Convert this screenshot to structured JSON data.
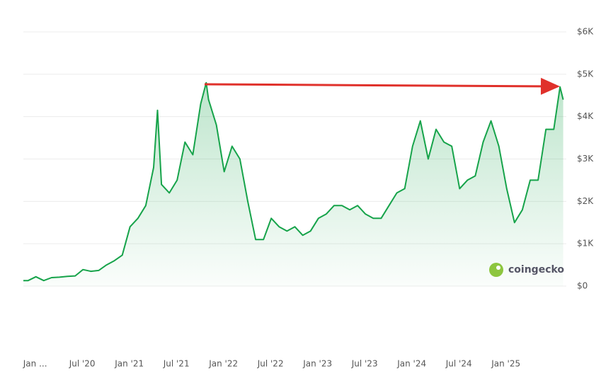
{
  "chart_data": {
    "type": "line",
    "x": [
      -0.6,
      0,
      1,
      2,
      3,
      4,
      5,
      6,
      7,
      8,
      9,
      10,
      11,
      12,
      13,
      14,
      15,
      16,
      16.5,
      17,
      18,
      19,
      20,
      21,
      22,
      22.7,
      23,
      24,
      25,
      26,
      27,
      28,
      29,
      30,
      31,
      32,
      33,
      34,
      35,
      36,
      37,
      38,
      39,
      40,
      41,
      42,
      43,
      44,
      45,
      46,
      47,
      48,
      49,
      50,
      51,
      52,
      53,
      54,
      55,
      56,
      57,
      58,
      59,
      60,
      61,
      62,
      63,
      64,
      65,
      66,
      67,
      67.8,
      68.2
    ],
    "series": [
      {
        "color": "#16a34a",
        "values": [
          130,
          130,
          220,
          130,
          200,
          210,
          230,
          240,
          390,
          350,
          370,
          500,
          600,
          730,
          1400,
          1600,
          1900,
          2800,
          4150,
          2400,
          2200,
          2500,
          3400,
          3100,
          4300,
          4800,
          4400,
          3800,
          2700,
          3300,
          3000,
          2000,
          1100,
          1100,
          1600,
          1400,
          1300,
          1400,
          1200,
          1300,
          1600,
          1700,
          1900,
          1900,
          1800,
          1900,
          1700,
          1600,
          1600,
          1900,
          2200,
          2300,
          3300,
          3900,
          3000,
          3700,
          3400,
          3300,
          2300,
          2500,
          2600,
          3400,
          3900,
          3300,
          2300,
          1500,
          1800,
          2500,
          2500,
          3700,
          3700,
          4700,
          4400
        ]
      }
    ],
    "xlim": [
      -0.6,
      68.6
    ],
    "xticks": [
      {
        "value": 0,
        "label": "Jan ..."
      },
      {
        "value": 6,
        "label": "Jul '20"
      },
      {
        "value": 12,
        "label": "Jan '21"
      },
      {
        "value": 18,
        "label": "Jul '21"
      },
      {
        "value": 24,
        "label": "Jan '22"
      },
      {
        "value": 30,
        "label": "Jul '22"
      },
      {
        "value": 36,
        "label": "Jan '23"
      },
      {
        "value": 42,
        "label": "Jul '23"
      },
      {
        "value": 48,
        "label": "Jan '24"
      },
      {
        "value": 54,
        "label": "Jul '24"
      },
      {
        "value": 60,
        "label": "Jan '25"
      }
    ],
    "ylim": [
      0,
      6000
    ],
    "yticks": [
      {
        "value": 0,
        "label": "$0"
      },
      {
        "value": 1000,
        "label": "$1K"
      },
      {
        "value": 2000,
        "label": "$2K"
      },
      {
        "value": 3000,
        "label": "$3K"
      },
      {
        "value": 4000,
        "label": "$4K"
      },
      {
        "value": 5000,
        "label": "$5K"
      },
      {
        "value": 6000,
        "label": "$6K"
      }
    ],
    "grid": true,
    "watermark": "coingecko"
  }
}
